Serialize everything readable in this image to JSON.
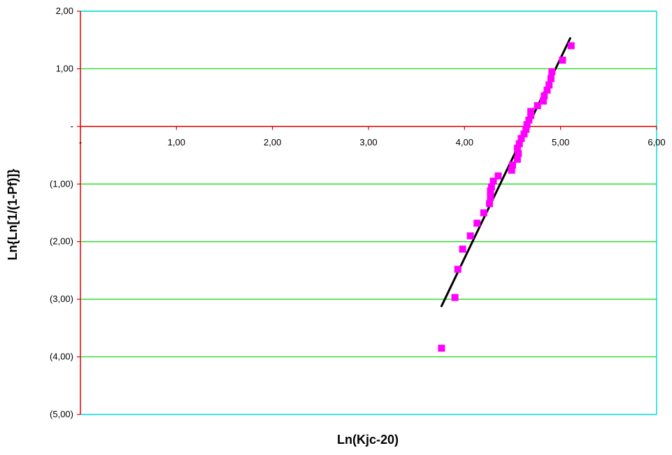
{
  "chart_data": {
    "type": "scatter",
    "title": "",
    "xlabel": "Ln(Kjc-20)",
    "ylabel": "Ln{Ln[1/(1-Pf)]}",
    "xlim": [
      0,
      6
    ],
    "ylim": [
      -5,
      2
    ],
    "x_tick_labels": [
      "-",
      "1,00",
      "2,00",
      "3,00",
      "4,00",
      "5,00",
      "6,00"
    ],
    "y_tick_labels": [
      "(5,00)",
      "(4,00)",
      "(3,00)",
      "(2,00)",
      "(1,00)",
      "-",
      "1,00",
      "2,00"
    ],
    "grid": "horizontal",
    "legend": "none",
    "colors": {
      "points": "#ff00ff",
      "fit_line": "#000000",
      "grid": "#00dd00",
      "zero_axis": "#dd0000",
      "border": "#00dddd"
    },
    "series": [
      {
        "kind": "points",
        "points": [
          [
            3.76,
            -3.85
          ],
          [
            3.9,
            -2.97
          ],
          [
            3.93,
            -2.48
          ],
          [
            3.98,
            -2.13
          ],
          [
            4.06,
            -1.9
          ],
          [
            4.13,
            -1.68
          ],
          [
            4.2,
            -1.5
          ],
          [
            4.26,
            -1.34
          ],
          [
            4.27,
            -1.22
          ],
          [
            4.27,
            -1.12
          ],
          [
            4.28,
            -1.05
          ],
          [
            4.3,
            -0.95
          ],
          [
            4.35,
            -0.86
          ],
          [
            4.49,
            -0.76
          ],
          [
            4.5,
            -0.67
          ],
          [
            4.55,
            -0.57
          ],
          [
            4.56,
            -0.47
          ],
          [
            4.55,
            -0.38
          ],
          [
            4.57,
            -0.3
          ],
          [
            4.59,
            -0.21
          ],
          [
            4.62,
            -0.13
          ],
          [
            4.64,
            -0.05
          ],
          [
            4.65,
            0.03
          ],
          [
            4.67,
            0.11
          ],
          [
            4.69,
            0.19
          ],
          [
            4.69,
            0.26
          ],
          [
            4.76,
            0.36
          ],
          [
            4.82,
            0.44
          ],
          [
            4.83,
            0.53
          ],
          [
            4.86,
            0.63
          ],
          [
            4.88,
            0.72
          ],
          [
            4.9,
            0.83
          ],
          [
            4.91,
            0.95
          ],
          [
            5.02,
            1.15
          ],
          [
            5.11,
            1.4
          ]
        ]
      },
      {
        "kind": "fit_line",
        "points": [
          [
            3.76,
            -3.12
          ],
          [
            5.1,
            1.53
          ]
        ]
      }
    ]
  }
}
